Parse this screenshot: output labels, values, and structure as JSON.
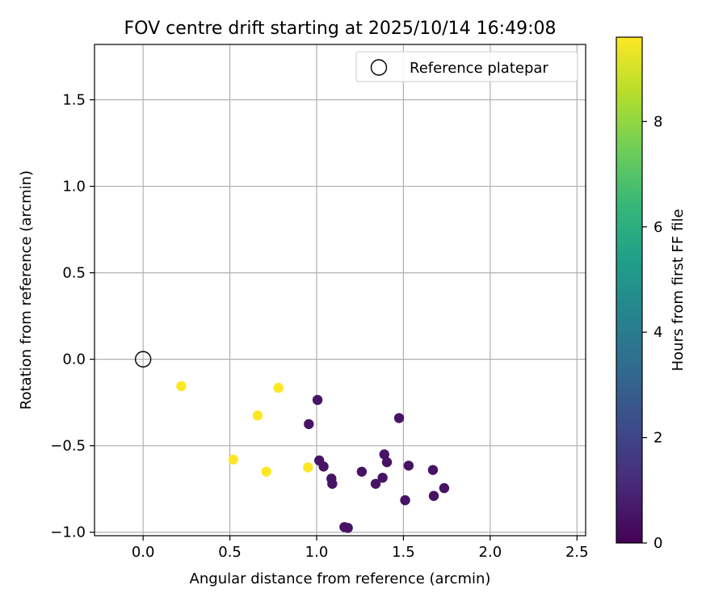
{
  "chart_data": {
    "type": "scatter",
    "title": "FOV centre drift starting at 2025/10/14 16:49:08",
    "xlabel": "Angular distance from reference (arcmin)",
    "ylabel": "Rotation from reference (arcmin)",
    "xlim": [
      -0.28,
      2.55
    ],
    "ylim": [
      -1.02,
      1.82
    ],
    "xticks": [
      0.0,
      0.5,
      1.0,
      1.5,
      2.0,
      2.5
    ],
    "xtick_labels": [
      "0.0",
      "0.5",
      "1.0",
      "1.5",
      "2.0",
      "2.5"
    ],
    "yticks": [
      -1.0,
      -0.5,
      0.0,
      0.5,
      1.0,
      1.5
    ],
    "ytick_labels": [
      "−1.0",
      "−0.5",
      "0.0",
      "0.5",
      "1.0",
      "1.5"
    ],
    "grid": true,
    "legend": {
      "position": "top-right",
      "label": "Reference platepar"
    },
    "reference_point": {
      "x": 0.0,
      "y": 0.0
    },
    "colorbar": {
      "label": "Hours from first FF file",
      "range": [
        0,
        9.6
      ],
      "ticks": [
        0,
        2,
        4,
        6,
        8
      ],
      "tick_labels": [
        "0",
        "2",
        "4",
        "6",
        "8"
      ],
      "colormap": [
        "#440154",
        "#482878",
        "#3e4989",
        "#31688e",
        "#26828e",
        "#1f9e89",
        "#35b779",
        "#6ece58",
        "#b5de2b",
        "#fde725"
      ]
    },
    "points": [
      {
        "x": 0.22,
        "y": -0.155,
        "hours": 9.6
      },
      {
        "x": 0.78,
        "y": -0.165,
        "hours": 9.6
      },
      {
        "x": 0.66,
        "y": -0.325,
        "hours": 9.6
      },
      {
        "x": 0.52,
        "y": -0.58,
        "hours": 9.6
      },
      {
        "x": 0.71,
        "y": -0.65,
        "hours": 9.6
      },
      {
        "x": 0.95,
        "y": -0.625,
        "hours": 9.6
      },
      {
        "x": 1.005,
        "y": -0.235,
        "hours": 0.5
      },
      {
        "x": 0.955,
        "y": -0.375,
        "hours": 0.5
      },
      {
        "x": 1.015,
        "y": -0.585,
        "hours": 0.5
      },
      {
        "x": 1.04,
        "y": -0.62,
        "hours": 0.5
      },
      {
        "x": 1.085,
        "y": -0.69,
        "hours": 0.5
      },
      {
        "x": 1.09,
        "y": -0.72,
        "hours": 0.5
      },
      {
        "x": 1.16,
        "y": -0.97,
        "hours": 0.5
      },
      {
        "x": 1.18,
        "y": -0.975,
        "hours": 0.5
      },
      {
        "x": 1.26,
        "y": -0.65,
        "hours": 0.5
      },
      {
        "x": 1.34,
        "y": -0.72,
        "hours": 0.5
      },
      {
        "x": 1.38,
        "y": -0.685,
        "hours": 0.5
      },
      {
        "x": 1.39,
        "y": -0.55,
        "hours": 0.5
      },
      {
        "x": 1.405,
        "y": -0.595,
        "hours": 0.5
      },
      {
        "x": 1.475,
        "y": -0.34,
        "hours": 0.5
      },
      {
        "x": 1.51,
        "y": -0.815,
        "hours": 0.5
      },
      {
        "x": 1.53,
        "y": -0.615,
        "hours": 0.5
      },
      {
        "x": 1.67,
        "y": -0.64,
        "hours": 0.5
      },
      {
        "x": 1.675,
        "y": -0.79,
        "hours": 0.5
      },
      {
        "x": 1.735,
        "y": -0.745,
        "hours": 0.5
      }
    ]
  }
}
